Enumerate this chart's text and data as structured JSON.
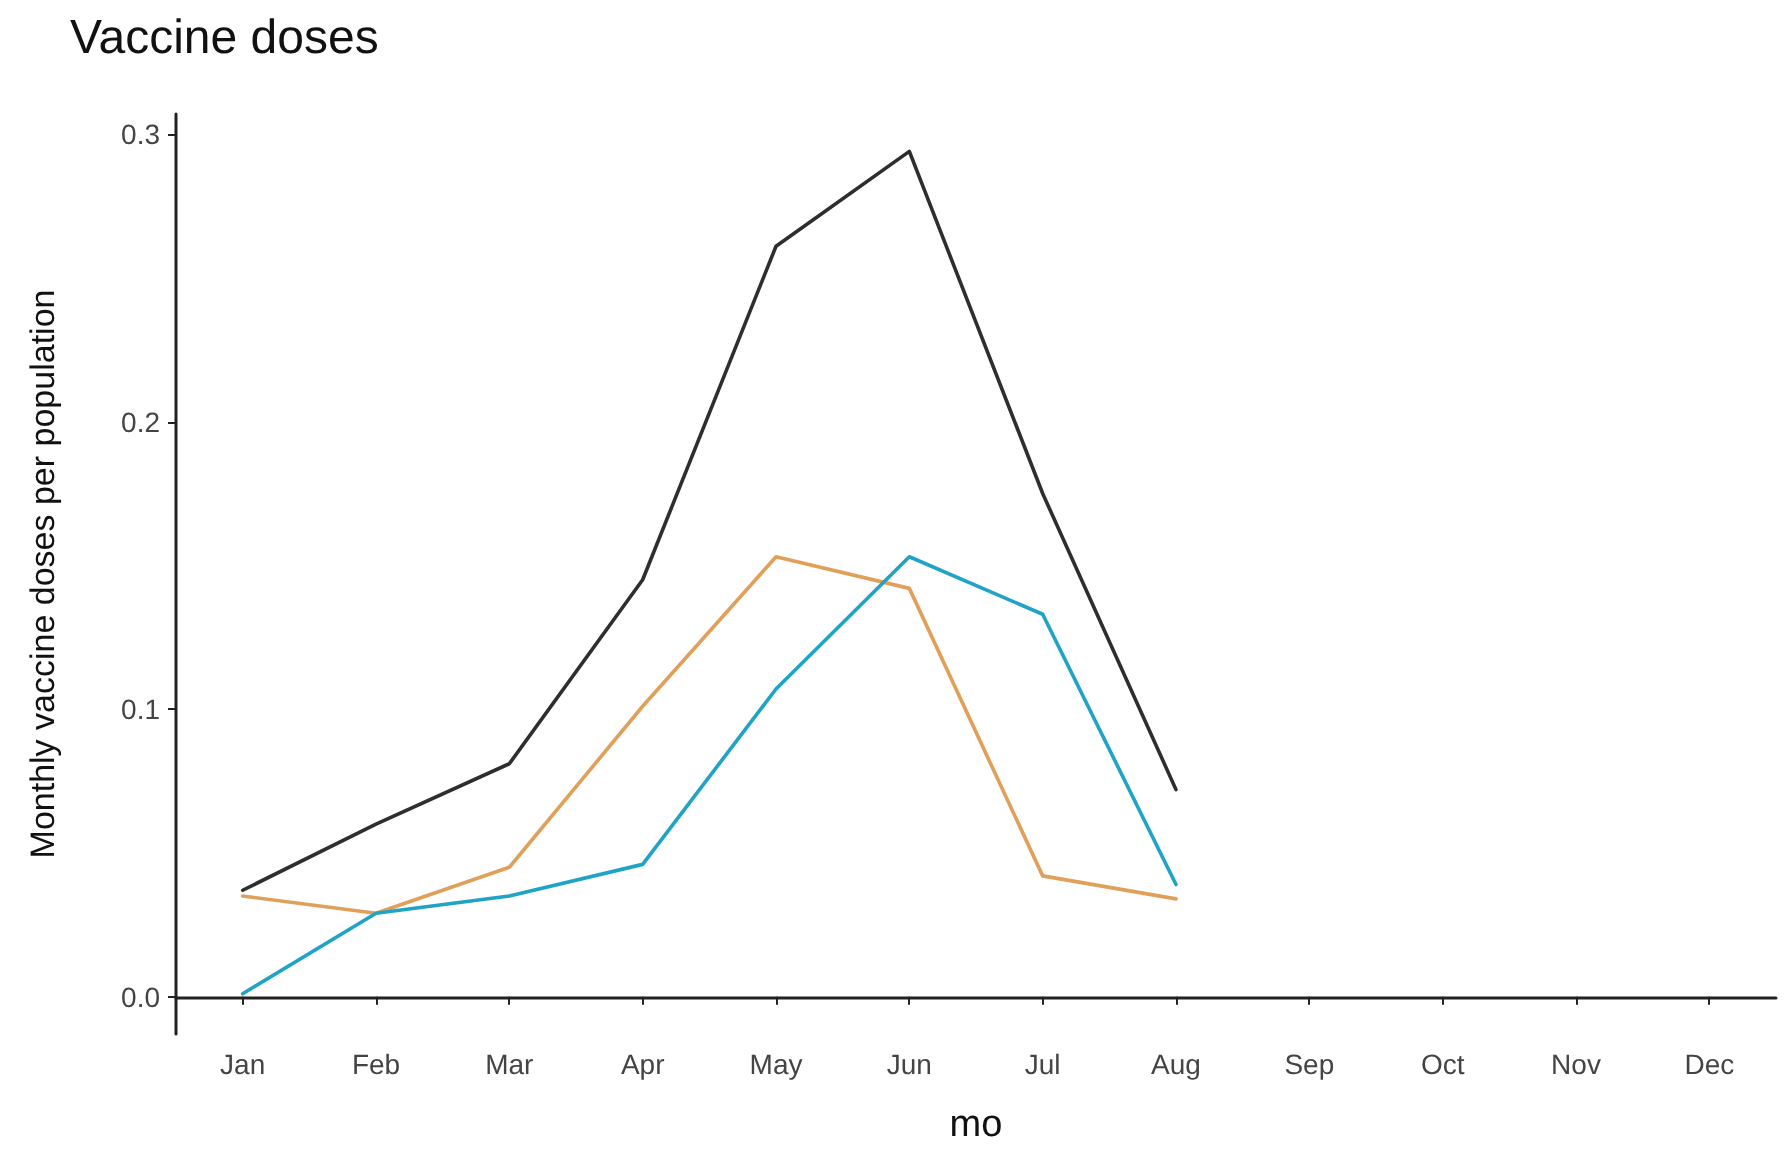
{
  "chart_data": {
    "type": "line",
    "title": "Vaccine doses",
    "xlabel": "mo",
    "ylabel": "Monthly vaccine doses per population",
    "categories": [
      "Jan",
      "Feb",
      "Mar",
      "Apr",
      "May",
      "Jun",
      "Jul",
      "Aug",
      "Sep",
      "Oct",
      "Nov",
      "Dec"
    ],
    "series": [
      {
        "color": "#2e2e2e",
        "values": [
          0.037,
          0.06,
          0.081,
          0.145,
          0.261,
          0.294,
          0.175,
          0.072,
          null,
          null,
          null,
          null
        ]
      },
      {
        "color": "#e0a05a",
        "values": [
          0.035,
          0.029,
          0.045,
          0.101,
          0.153,
          0.142,
          0.042,
          0.034,
          null,
          null,
          null,
          null
        ]
      },
      {
        "color": "#1fa3c6",
        "values": [
          0.001,
          0.029,
          0.035,
          0.046,
          0.107,
          0.153,
          0.133,
          0.039,
          null,
          null,
          null,
          null
        ]
      }
    ],
    "ylim": [
      -0.013,
      0.307
    ],
    "yticks": [
      {
        "value": 0,
        "label": "0.0"
      },
      {
        "value": 0.1,
        "label": "0.1"
      },
      {
        "value": 0.2,
        "label": "0.2"
      },
      {
        "value": 0.3,
        "label": "0.3"
      }
    ],
    "grid": false,
    "marker": "none",
    "line_style": "solid"
  }
}
